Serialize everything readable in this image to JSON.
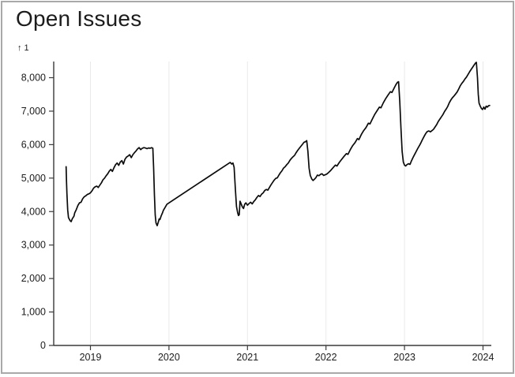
{
  "window": {
    "background": "#ffffff",
    "frame_border_color": "#a9a9a9"
  },
  "header": {
    "title": "Open Issues"
  },
  "chart_data": {
    "type": "line",
    "title": "Open Issues",
    "y_axis_label": "↑ 1",
    "legend": "none",
    "grid": "vertical-only",
    "line_color": "#0b0b0b",
    "grid_color": "#e9e9e9",
    "axis_color": "#3a3a3a",
    "tick_label_color": "#1c1c1c",
    "x_range": [
      2018.64,
      2024.14
    ],
    "y_range": [
      0,
      8000
    ],
    "x_ticks": [
      {
        "value": 2019,
        "label": "2019"
      },
      {
        "value": 2020,
        "label": "2020"
      },
      {
        "value": 2021,
        "label": "2021"
      },
      {
        "value": 2022,
        "label": "2022"
      },
      {
        "value": 2023,
        "label": "2023"
      },
      {
        "value": 2024,
        "label": "2024"
      }
    ],
    "y_ticks": [
      {
        "value": 0,
        "label": "0"
      },
      {
        "value": 1000,
        "label": "1,000"
      },
      {
        "value": 2000,
        "label": "2,000"
      },
      {
        "value": 3000,
        "label": "3,000"
      },
      {
        "value": 4000,
        "label": "4,000"
      },
      {
        "value": 5000,
        "label": "5,000"
      },
      {
        "value": 6000,
        "label": "6,000"
      },
      {
        "value": 7000,
        "label": "7,000"
      },
      {
        "value": 8000,
        "label": "8,000"
      }
    ],
    "series": [
      {
        "name": "Open Issues",
        "points": [
          [
            2018.69,
            5340
          ],
          [
            2018.695,
            4900
          ],
          [
            2018.7,
            4550
          ],
          [
            2018.71,
            4050
          ],
          [
            2018.72,
            3820
          ],
          [
            2018.74,
            3730
          ],
          [
            2018.755,
            3700
          ],
          [
            2018.77,
            3790
          ],
          [
            2018.79,
            3860
          ],
          [
            2018.8,
            3960
          ],
          [
            2018.82,
            4060
          ],
          [
            2018.84,
            4180
          ],
          [
            2018.86,
            4260
          ],
          [
            2018.88,
            4280
          ],
          [
            2018.9,
            4380
          ],
          [
            2018.92,
            4440
          ],
          [
            2018.94,
            4470
          ],
          [
            2018.96,
            4510
          ],
          [
            2018.98,
            4530
          ],
          [
            2019.0,
            4560
          ],
          [
            2019.02,
            4620
          ],
          [
            2019.04,
            4700
          ],
          [
            2019.06,
            4740
          ],
          [
            2019.08,
            4760
          ],
          [
            2019.1,
            4720
          ],
          [
            2019.12,
            4790
          ],
          [
            2019.14,
            4860
          ],
          [
            2019.16,
            4950
          ],
          [
            2019.18,
            5000
          ],
          [
            2019.2,
            5070
          ],
          [
            2019.22,
            5130
          ],
          [
            2019.24,
            5210
          ],
          [
            2019.26,
            5260
          ],
          [
            2019.28,
            5200
          ],
          [
            2019.3,
            5310
          ],
          [
            2019.32,
            5400
          ],
          [
            2019.34,
            5450
          ],
          [
            2019.36,
            5380
          ],
          [
            2019.38,
            5480
          ],
          [
            2019.4,
            5520
          ],
          [
            2019.42,
            5420
          ],
          [
            2019.44,
            5560
          ],
          [
            2019.46,
            5630
          ],
          [
            2019.48,
            5660
          ],
          [
            2019.5,
            5700
          ],
          [
            2019.52,
            5610
          ],
          [
            2019.54,
            5700
          ],
          [
            2019.56,
            5760
          ],
          [
            2019.58,
            5810
          ],
          [
            2019.6,
            5870
          ],
          [
            2019.62,
            5910
          ],
          [
            2019.64,
            5850
          ],
          [
            2019.66,
            5890
          ],
          [
            2019.68,
            5910
          ],
          [
            2019.7,
            5900
          ],
          [
            2019.72,
            5880
          ],
          [
            2019.74,
            5900
          ],
          [
            2019.76,
            5890
          ],
          [
            2019.78,
            5910
          ],
          [
            2019.795,
            5890
          ],
          [
            2019.805,
            5300
          ],
          [
            2019.815,
            4500
          ],
          [
            2019.825,
            3900
          ],
          [
            2019.835,
            3660
          ],
          [
            2019.85,
            3580
          ],
          [
            2019.865,
            3690
          ],
          [
            2019.875,
            3780
          ],
          [
            2019.885,
            3760
          ],
          [
            2019.9,
            3870
          ],
          [
            2019.915,
            3950
          ],
          [
            2019.93,
            4040
          ],
          [
            2019.95,
            4120
          ],
          [
            2019.965,
            4180
          ],
          [
            2019.975,
            4220
          ],
          [
            2020.78,
            5470
          ],
          [
            2020.8,
            5420
          ],
          [
            2020.815,
            5450
          ],
          [
            2020.83,
            5320
          ],
          [
            2020.845,
            4700
          ],
          [
            2020.86,
            4150
          ],
          [
            2020.875,
            3960
          ],
          [
            2020.885,
            3880
          ],
          [
            2020.895,
            3910
          ],
          [
            2020.905,
            4310
          ],
          [
            2020.92,
            4230
          ],
          [
            2020.935,
            4140
          ],
          [
            2020.95,
            4090
          ],
          [
            2020.965,
            4220
          ],
          [
            2020.98,
            4260
          ],
          [
            2021.0,
            4190
          ],
          [
            2021.02,
            4240
          ],
          [
            2021.04,
            4280
          ],
          [
            2021.06,
            4230
          ],
          [
            2021.08,
            4300
          ],
          [
            2021.1,
            4350
          ],
          [
            2021.12,
            4420
          ],
          [
            2021.14,
            4480
          ],
          [
            2021.16,
            4450
          ],
          [
            2021.18,
            4520
          ],
          [
            2021.2,
            4560
          ],
          [
            2021.22,
            4630
          ],
          [
            2021.24,
            4660
          ],
          [
            2021.26,
            4640
          ],
          [
            2021.28,
            4720
          ],
          [
            2021.3,
            4800
          ],
          [
            2021.32,
            4870
          ],
          [
            2021.34,
            4940
          ],
          [
            2021.36,
            4990
          ],
          [
            2021.38,
            5010
          ],
          [
            2021.4,
            5090
          ],
          [
            2021.42,
            5160
          ],
          [
            2021.44,
            5220
          ],
          [
            2021.46,
            5300
          ],
          [
            2021.48,
            5340
          ],
          [
            2021.5,
            5400
          ],
          [
            2021.52,
            5450
          ],
          [
            2021.54,
            5530
          ],
          [
            2021.56,
            5590
          ],
          [
            2021.58,
            5640
          ],
          [
            2021.6,
            5680
          ],
          [
            2021.62,
            5760
          ],
          [
            2021.64,
            5830
          ],
          [
            2021.66,
            5890
          ],
          [
            2021.68,
            5950
          ],
          [
            2021.7,
            6010
          ],
          [
            2021.72,
            6070
          ],
          [
            2021.74,
            6090
          ],
          [
            2021.755,
            6120
          ],
          [
            2021.77,
            5800
          ],
          [
            2021.785,
            5300
          ],
          [
            2021.8,
            5080
          ],
          [
            2021.82,
            4970
          ],
          [
            2021.835,
            4930
          ],
          [
            2021.85,
            4960
          ],
          [
            2021.87,
            5010
          ],
          [
            2021.89,
            5090
          ],
          [
            2021.91,
            5070
          ],
          [
            2021.93,
            5110
          ],
          [
            2021.95,
            5130
          ],
          [
            2021.97,
            5080
          ],
          [
            2021.99,
            5100
          ],
          [
            2022.01,
            5120
          ],
          [
            2022.03,
            5160
          ],
          [
            2022.06,
            5230
          ],
          [
            2022.09,
            5310
          ],
          [
            2022.12,
            5390
          ],
          [
            2022.14,
            5360
          ],
          [
            2022.17,
            5470
          ],
          [
            2022.2,
            5560
          ],
          [
            2022.23,
            5650
          ],
          [
            2022.26,
            5730
          ],
          [
            2022.28,
            5710
          ],
          [
            2022.31,
            5850
          ],
          [
            2022.34,
            5970
          ],
          [
            2022.37,
            6060
          ],
          [
            2022.4,
            6180
          ],
          [
            2022.42,
            6150
          ],
          [
            2022.45,
            6300
          ],
          [
            2022.48,
            6420
          ],
          [
            2022.51,
            6510
          ],
          [
            2022.54,
            6640
          ],
          [
            2022.56,
            6620
          ],
          [
            2022.59,
            6760
          ],
          [
            2022.62,
            6900
          ],
          [
            2022.65,
            7010
          ],
          [
            2022.68,
            7120
          ],
          [
            2022.7,
            7100
          ],
          [
            2022.73,
            7250
          ],
          [
            2022.76,
            7370
          ],
          [
            2022.79,
            7480
          ],
          [
            2022.82,
            7580
          ],
          [
            2022.84,
            7560
          ],
          [
            2022.87,
            7700
          ],
          [
            2022.89,
            7790
          ],
          [
            2022.91,
            7860
          ],
          [
            2022.925,
            7880
          ],
          [
            2022.94,
            7300
          ],
          [
            2022.955,
            6500
          ],
          [
            2022.97,
            5800
          ],
          [
            2022.985,
            5480
          ],
          [
            2023.0,
            5390
          ],
          [
            2023.015,
            5360
          ],
          [
            2023.03,
            5400
          ],
          [
            2023.05,
            5430
          ],
          [
            2023.07,
            5410
          ],
          [
            2023.09,
            5520
          ],
          [
            2023.11,
            5620
          ],
          [
            2023.13,
            5710
          ],
          [
            2023.15,
            5800
          ],
          [
            2023.17,
            5890
          ],
          [
            2023.19,
            5970
          ],
          [
            2023.21,
            6060
          ],
          [
            2023.23,
            6160
          ],
          [
            2023.25,
            6250
          ],
          [
            2023.27,
            6330
          ],
          [
            2023.29,
            6390
          ],
          [
            2023.31,
            6410
          ],
          [
            2023.33,
            6380
          ],
          [
            2023.35,
            6420
          ],
          [
            2023.37,
            6460
          ],
          [
            2023.39,
            6530
          ],
          [
            2023.41,
            6600
          ],
          [
            2023.43,
            6690
          ],
          [
            2023.45,
            6760
          ],
          [
            2023.47,
            6830
          ],
          [
            2023.49,
            6900
          ],
          [
            2023.51,
            6990
          ],
          [
            2023.53,
            7060
          ],
          [
            2023.55,
            7140
          ],
          [
            2023.57,
            7250
          ],
          [
            2023.59,
            7330
          ],
          [
            2023.61,
            7400
          ],
          [
            2023.63,
            7450
          ],
          [
            2023.65,
            7510
          ],
          [
            2023.67,
            7570
          ],
          [
            2023.69,
            7660
          ],
          [
            2023.71,
            7760
          ],
          [
            2023.73,
            7830
          ],
          [
            2023.75,
            7890
          ],
          [
            2023.77,
            7960
          ],
          [
            2023.79,
            8020
          ],
          [
            2023.81,
            8100
          ],
          [
            2023.83,
            8180
          ],
          [
            2023.85,
            8250
          ],
          [
            2023.87,
            8320
          ],
          [
            2023.89,
            8390
          ],
          [
            2023.905,
            8440
          ],
          [
            2023.915,
            8460
          ],
          [
            2023.93,
            8000
          ],
          [
            2023.94,
            7500
          ],
          [
            2023.95,
            7240
          ],
          [
            2023.965,
            7150
          ],
          [
            2023.98,
            7080
          ],
          [
            2023.995,
            7050
          ],
          [
            2024.01,
            7120
          ],
          [
            2024.025,
            7060
          ],
          [
            2024.04,
            7150
          ],
          [
            2024.055,
            7120
          ],
          [
            2024.07,
            7160
          ],
          [
            2024.085,
            7170
          ]
        ]
      }
    ]
  }
}
